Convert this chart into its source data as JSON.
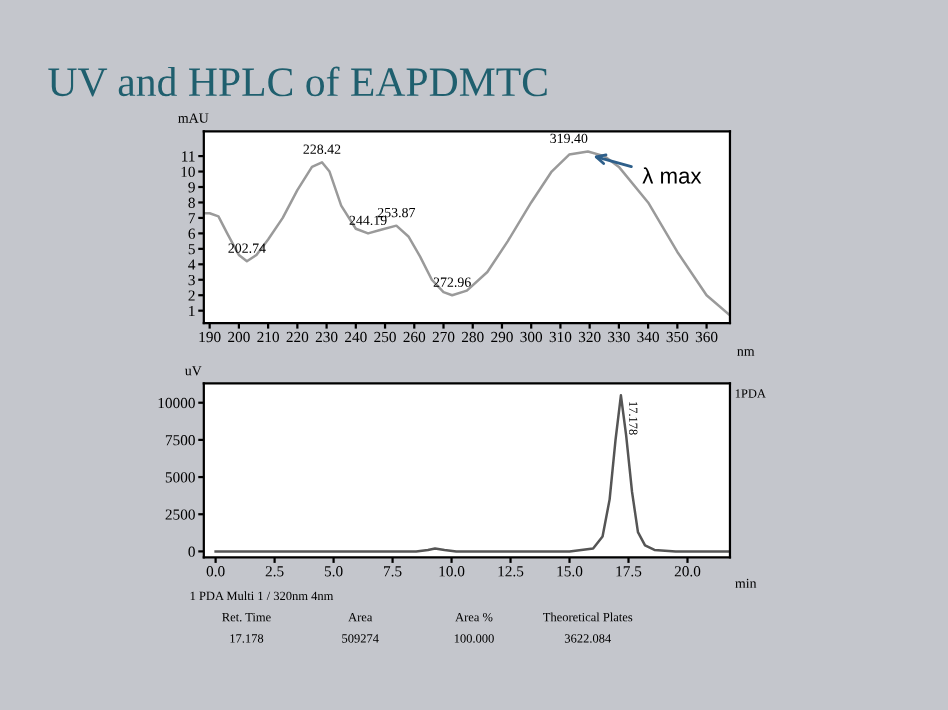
{
  "chart_data": [
    {
      "type": "line",
      "title": "UV and HPLC of EAPDMTC",
      "xlabel": "nm",
      "ylabel": "mAU",
      "xlim": [
        188,
        368
      ],
      "xticks": [
        190,
        200,
        210,
        220,
        230,
        240,
        250,
        260,
        270,
        280,
        290,
        300,
        310,
        320,
        330,
        340,
        350,
        360
      ],
      "ylim": [
        0.2,
        12.6
      ],
      "yticks": [
        1,
        2,
        3,
        4,
        5,
        6,
        7,
        8,
        9,
        10,
        11
      ],
      "grid": false,
      "series": [
        {
          "color": "#9a9a9a",
          "x": [
            188,
            190,
            193,
            196,
            200,
            202.74,
            206,
            210,
            215,
            220,
            225,
            228.42,
            231,
            235,
            240,
            244.19,
            248,
            253.87,
            258,
            262,
            266,
            270,
            272.96,
            278,
            285,
            292,
            300,
            307,
            313,
            319.4,
            325,
            330,
            340,
            350,
            360,
            368
          ],
          "values": [
            7.3,
            7.3,
            7.1,
            6.0,
            4.6,
            4.2,
            4.6,
            5.6,
            7.0,
            8.8,
            10.3,
            10.6,
            10.0,
            7.8,
            6.3,
            6.0,
            6.2,
            6.5,
            5.8,
            4.5,
            3.0,
            2.2,
            2.0,
            2.3,
            3.5,
            5.5,
            8.0,
            10.0,
            11.1,
            11.3,
            11.0,
            10.3,
            8.0,
            4.8,
            2.0,
            0.7
          ]
        }
      ],
      "annotations": [
        {
          "text": "202.74",
          "x": 202.74,
          "y": 4.2
        },
        {
          "text": "228.42",
          "x": 228.42,
          "y": 10.6
        },
        {
          "text": "244.19",
          "x": 244.19,
          "y": 6.0
        },
        {
          "text": "253.87",
          "x": 253.87,
          "y": 6.5
        },
        {
          "text": "272.96",
          "x": 272.96,
          "y": 2.0
        },
        {
          "text": "319.40",
          "x": 319.4,
          "y": 11.3
        },
        {
          "text": "λ max",
          "x": 319.4,
          "y": 11.1
        }
      ]
    },
    {
      "type": "line",
      "xlabel": "min",
      "ylabel": "uV",
      "xlim": [
        -0.5,
        21.8
      ],
      "xticks": [
        {
          "value": 0,
          "label": "0.0"
        },
        {
          "value": 2.5,
          "label": "2.5"
        },
        {
          "value": 5,
          "label": "5.0"
        },
        {
          "value": 7.5,
          "label": "7.5"
        },
        {
          "value": 10,
          "label": "10.0"
        },
        {
          "value": 12.5,
          "label": "12.5"
        },
        {
          "value": 15,
          "label": "15.0"
        },
        {
          "value": 17.5,
          "label": "17.5"
        },
        {
          "value": 20,
          "label": "20.0"
        }
      ],
      "ylim": [
        -400,
        11300
      ],
      "yticks": [
        0,
        2500,
        5000,
        7500,
        10000
      ],
      "grid": false,
      "series": [
        {
          "color": "#555555",
          "x": [
            0,
            1.2,
            5,
            8.5,
            9.0,
            9.3,
            9.7,
            10.2,
            15,
            16.0,
            16.4,
            16.7,
            16.95,
            17.178,
            17.4,
            17.65,
            17.9,
            18.2,
            18.6,
            19.5,
            21.8
          ],
          "values": [
            0,
            0,
            0,
            0,
            100,
            200,
            100,
            0,
            0,
            200,
            1000,
            3500,
            7500,
            10500,
            7800,
            4000,
            1300,
            400,
            100,
            0,
            0
          ]
        }
      ],
      "annotations": [
        {
          "text": "17.178",
          "x": 17.178,
          "y": 10500
        },
        "1PDA",
        "1 PDA Multi 1 / 320nm 4nm",
        "Ret. Time",
        "17.178",
        "Area",
        "509274",
        "Area %",
        "100.000",
        "Theoretical Plates",
        "3622.084"
      ]
    }
  ]
}
